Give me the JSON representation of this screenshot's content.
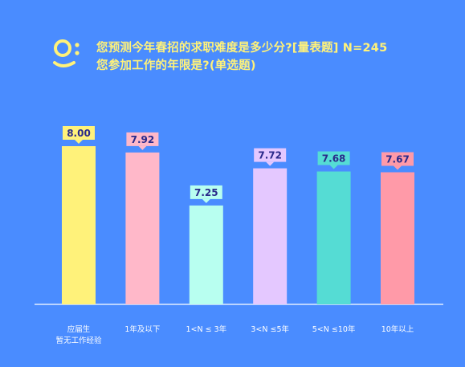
{
  "title_line1": "您预测今年春招的求职难度是多少分?[量表题] N=245",
  "title_line2": "您参加工作的年限是?(单选题)",
  "chart_data": {
    "type": "bar",
    "title": "您预测今年春招的求职难度是多少分?[量表题] N=245",
    "subtitle": "您参加工作的年限是?(单选题)",
    "categories": [
      [
        "应届生",
        "暂无工作经验"
      ],
      [
        "1年及以下"
      ],
      [
        "1<N ≤ 3年"
      ],
      [
        "3<N ≤5年"
      ],
      [
        "5<N ≤10年"
      ],
      [
        "10年以上"
      ]
    ],
    "values": [
      8.0,
      7.92,
      7.25,
      7.72,
      7.68,
      7.67
    ],
    "value_labels": [
      "8.00",
      "7.92",
      "7.25",
      "7.72",
      "7.68",
      "7.67"
    ],
    "bar_colors": [
      "#fff27a",
      "#ffb8c9",
      "#b8fff0",
      "#e4c8ff",
      "#55dcd4",
      "#ff9aa8"
    ],
    "label_colors": [
      "#fff27a",
      "#ffb8c9",
      "#b8fff0",
      "#e4c8ff",
      "#55dcd4",
      "#ff9aa8"
    ],
    "ylim": [
      6.0,
      8.2
    ],
    "grid": false,
    "legend": false
  },
  "colors": {
    "background": "#4a8cff",
    "title": "#fff27a",
    "axis": "#ffffff",
    "label_text": "#2a2a8a"
  }
}
